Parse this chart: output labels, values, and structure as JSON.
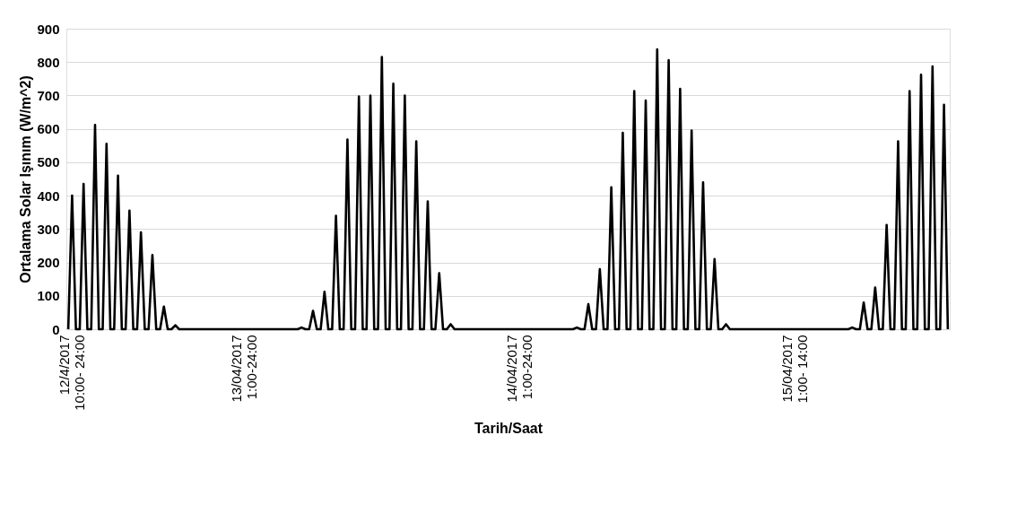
{
  "chart_data": {
    "type": "line",
    "xlabel": "Tarih/Saat",
    "ylabel": "Ortalama Solar Işınım (W/m^2)",
    "categories": [
      null,
      "12/4/2017\n10:00- 24:00",
      null,
      null,
      null,
      null,
      null,
      null,
      null,
      null,
      null,
      null,
      null,
      null,
      null,
      null,
      null,
      null,
      null,
      null,
      null,
      null,
      null,
      null,
      null,
      null,
      null,
      null,
      null,
      null,
      null,
      null,
      null,
      null,
      null,
      null,
      null,
      null,
      null,
      null,
      null,
      null,
      null,
      null,
      null,
      null,
      "13/04/2017\n1:00-24:00",
      null,
      null,
      null,
      null,
      null,
      null,
      null,
      null,
      null,
      null,
      null,
      null,
      null,
      null,
      null,
      null,
      null,
      null,
      null,
      null,
      null,
      null,
      null,
      null,
      null,
      null,
      null,
      null,
      null,
      null,
      null,
      null,
      null,
      null,
      null,
      null,
      null,
      null,
      null,
      null,
      null,
      null,
      null,
      null,
      null,
      null,
      null,
      null,
      null,
      null,
      null,
      null,
      null,
      null,
      null,
      null,
      null,
      null,
      null,
      null,
      null,
      null,
      null,
      null,
      null,
      null,
      null,
      null,
      null,
      null,
      null,
      "14/04/2017\n1:00-24:00",
      null,
      null,
      null,
      null,
      null,
      null,
      null,
      null,
      null,
      null,
      null,
      null,
      null,
      null,
      null,
      null,
      null,
      null,
      null,
      null,
      null,
      null,
      null,
      null,
      null,
      null,
      null,
      null,
      null,
      null,
      null,
      null,
      null,
      null,
      null,
      null,
      null,
      null,
      null,
      null,
      null,
      null,
      null,
      null,
      null,
      null,
      null,
      null,
      null,
      null,
      null,
      null,
      null,
      null,
      null,
      null,
      null,
      null,
      null,
      null,
      null,
      null,
      null,
      null,
      null,
      null,
      null,
      null,
      null,
      null,
      null,
      "15/04/2017\n1:00- 14:00",
      null,
      null,
      null,
      null,
      null,
      null,
      null,
      null,
      null,
      null,
      null,
      null,
      null,
      null,
      null,
      null,
      null,
      null,
      null,
      null,
      null,
      null,
      null,
      null,
      null,
      null,
      null,
      null,
      null,
      null,
      null,
      null,
      null,
      null,
      null,
      null,
      null,
      null,
      null,
      null
    ],
    "series": [
      {
        "color": "#000000",
        "values": [
          0,
          400,
          0,
          0,
          435,
          0,
          0,
          612,
          0,
          0,
          555,
          0,
          0,
          460,
          0,
          0,
          355,
          0,
          0,
          290,
          0,
          0,
          222,
          0,
          0,
          68,
          0,
          0,
          12,
          0,
          0,
          0,
          0,
          0,
          0,
          0,
          0,
          0,
          0,
          0,
          0,
          0,
          0,
          0,
          0,
          0,
          0,
          0,
          0,
          0,
          0,
          0,
          0,
          0,
          0,
          0,
          0,
          0,
          0,
          0,
          0,
          5,
          0,
          0,
          55,
          0,
          0,
          112,
          0,
          0,
          340,
          0,
          0,
          568,
          0,
          0,
          697,
          0,
          0,
          700,
          0,
          0,
          815,
          0,
          0,
          735,
          0,
          0,
          700,
          0,
          0,
          563,
          0,
          0,
          383,
          0,
          0,
          168,
          0,
          0,
          15,
          0,
          0,
          0,
          0,
          0,
          0,
          0,
          0,
          0,
          0,
          0,
          0,
          0,
          0,
          0,
          0,
          0,
          0,
          0,
          0,
          0,
          0,
          0,
          0,
          0,
          0,
          0,
          0,
          0,
          0,
          0,
          0,
          5,
          0,
          0,
          75,
          0,
          0,
          180,
          0,
          0,
          425,
          0,
          0,
          588,
          0,
          0,
          713,
          0,
          0,
          685,
          0,
          0,
          838,
          0,
          0,
          806,
          0,
          0,
          720,
          0,
          0,
          595,
          0,
          0,
          440,
          0,
          0,
          210,
          0,
          0,
          15,
          0,
          0,
          0,
          0,
          0,
          0,
          0,
          0,
          0,
          0,
          0,
          0,
          0,
          0,
          0,
          0,
          0,
          0,
          0,
          0,
          0,
          0,
          0,
          0,
          0,
          0,
          0,
          0,
          0,
          0,
          0,
          0,
          5,
          0,
          0,
          80,
          0,
          0,
          125,
          0,
          0,
          312,
          0,
          0,
          563,
          0,
          0,
          713,
          0,
          0,
          762,
          0,
          0,
          787,
          0,
          0,
          672,
          0
        ]
      }
    ],
    "ylim": [
      0,
      900
    ],
    "yticks": [
      0,
      100,
      200,
      300,
      400,
      500,
      600,
      700,
      800,
      900
    ],
    "grid": "y",
    "legend": false,
    "marker": "none",
    "line_style": "solid"
  }
}
